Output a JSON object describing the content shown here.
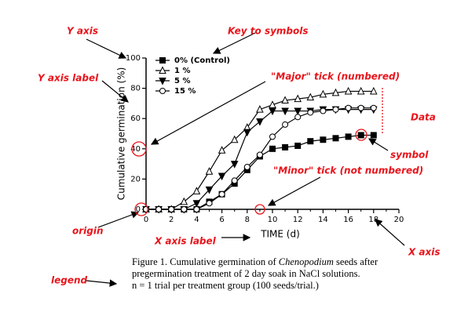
{
  "chart_data": {
    "type": "line",
    "x_label": "TIME (d)",
    "y_label": "Cumulative germination (%)",
    "x": [
      0,
      1,
      2,
      3,
      4,
      5,
      6,
      7,
      8,
      9,
      10,
      11,
      12,
      13,
      14,
      15,
      16,
      17,
      18
    ],
    "series": [
      {
        "name": "0% (Control)",
        "color": "#000000",
        "marker": "square-filled",
        "values": [
          0,
          0,
          0,
          0,
          0,
          5,
          10,
          17,
          26,
          35,
          40,
          41,
          42,
          45,
          46,
          47,
          48,
          49,
          49
        ]
      },
      {
        "name": "1 %",
        "color": "#000000",
        "marker": "triangle-up-open",
        "values": [
          0,
          0,
          0,
          5,
          12,
          25,
          39,
          46,
          54,
          66,
          69,
          72,
          73,
          74,
          76,
          77,
          78,
          78,
          78
        ]
      },
      {
        "name": "5 %",
        "color": "#000000",
        "marker": "triangle-down-filled",
        "values": [
          0,
          0,
          0,
          0,
          4,
          13,
          22,
          30,
          51,
          58,
          65,
          65,
          65,
          65,
          66,
          66,
          66,
          66,
          66
        ]
      },
      {
        "name": "15 %",
        "color": "#000000",
        "marker": "circle-open",
        "values": [
          0,
          0,
          0,
          0,
          0,
          4,
          10,
          19,
          28,
          36,
          48,
          56,
          61,
          64,
          65,
          66,
          67,
          67,
          67
        ]
      }
    ],
    "xlim": [
      0,
      20
    ],
    "ylim": [
      0,
      100
    ],
    "xticks": [
      0,
      2,
      4,
      6,
      8,
      10,
      12,
      14,
      16,
      18,
      20
    ],
    "xminorticks": [
      1,
      3,
      5,
      7,
      9,
      11,
      13,
      15,
      17,
      19
    ],
    "yticks": [
      0,
      20,
      40,
      60,
      80,
      100
    ],
    "legend": "top-left"
  },
  "caption": {
    "line1": [
      "Figure 1.  Cumulative germination of ",
      "Chenopodium",
      " seeds after"
    ],
    "line2": "pregermination treatment of 2 day soak in NaCl solutions.",
    "line3": "n = 1 trial per treatment group (100 seeds/trial.)"
  },
  "annotations": [
    "Y axis",
    "Key to symbols",
    "Y axis label",
    "\"Major\" tick (numbered)",
    "Data",
    "symbol",
    "\"Minor\" tick (not numbered)",
    "origin",
    "X axis label",
    "X axis",
    "legend"
  ]
}
